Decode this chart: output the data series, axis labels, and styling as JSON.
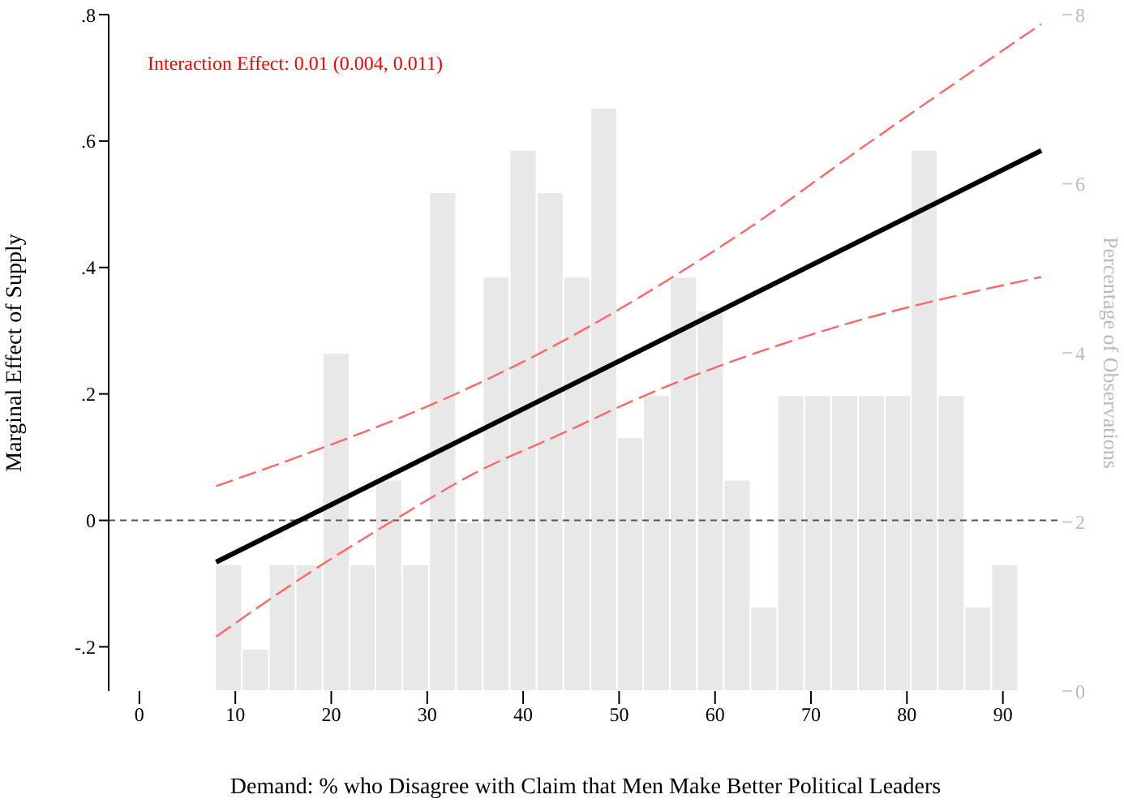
{
  "chart_data": {
    "type": "line",
    "xlabel": "Demand: % who Disagree with Claim that Men Make Better Political Leaders",
    "ylabel": "Marginal Effect of Supply",
    "y2label": "Percentage of Observations",
    "annotations": [
      "Interaction Effect: 0.01 (0.004, 0.011)"
    ],
    "xlim": [
      -3.2,
      96.2
    ],
    "xticks": [
      0,
      10,
      20,
      30,
      40,
      50,
      60,
      70,
      80,
      90
    ],
    "ylim": [
      -0.27,
      0.8
    ],
    "yticks": [
      {
        "value": -0.2,
        "label": "-.2"
      },
      0,
      {
        "value": 0.2,
        "label": ".2"
      },
      {
        "value": 0.4,
        "label": ".4"
      },
      {
        "value": 0.6,
        "label": ".6"
      },
      {
        "value": 0.8,
        "label": ".8"
      }
    ],
    "y2lim": [
      0,
      8
    ],
    "y2ticks": [
      0,
      2,
      4,
      6,
      8
    ],
    "ref_lines": [
      {
        "axis": "y",
        "value": 0,
        "color": "#555555",
        "line_style": "dashed"
      }
    ],
    "series": [
      {
        "type": "histogram",
        "axis": "y2",
        "color": "#e8e8e8",
        "bins": [
          7.9,
          10.7,
          13.5,
          16.3,
          19.1,
          21.9,
          24.6,
          27.4,
          30.2,
          33.0,
          35.8,
          38.6,
          41.4,
          44.2,
          47.0,
          49.8,
          52.5,
          55.3,
          58.1,
          60.9,
          63.7,
          66.5,
          69.3,
          72.1,
          74.9,
          77.7,
          80.4,
          83.2,
          86.0,
          88.8,
          91.6
        ],
        "values": [
          1.5,
          0.5,
          1.5,
          1.5,
          4.0,
          1.5,
          2.5,
          1.5,
          5.9,
          2.0,
          4.9,
          6.4,
          5.9,
          4.9,
          6.9,
          3.0,
          3.5,
          4.9,
          4.5,
          2.5,
          1.0,
          3.5,
          3.5,
          3.5,
          3.5,
          3.5,
          6.4,
          3.5,
          1.0,
          1.5
        ]
      },
      {
        "color": "#ff6666",
        "line_style": "dashed",
        "x": [
          8,
          20,
          31.5,
          42.7,
          55.6,
          62.9,
          76.3,
          94
        ],
        "values": [
          0.054,
          0.12,
          0.19,
          0.272,
          0.385,
          0.456,
          0.6,
          0.785
        ]
      },
      {
        "color": "#ff6666",
        "line_style": "dashed",
        "x": [
          8,
          17,
          26.5,
          35,
          44.3,
          51.1,
          70.7,
          94
        ],
        "values": [
          -0.184,
          -0.09,
          0,
          0.075,
          0.139,
          0.187,
          0.297,
          0.385
        ]
      },
      {
        "color": "#000000",
        "line_style": "solid",
        "x": [
          8,
          94
        ],
        "values": [
          -0.066,
          0.585
        ]
      }
    ]
  }
}
